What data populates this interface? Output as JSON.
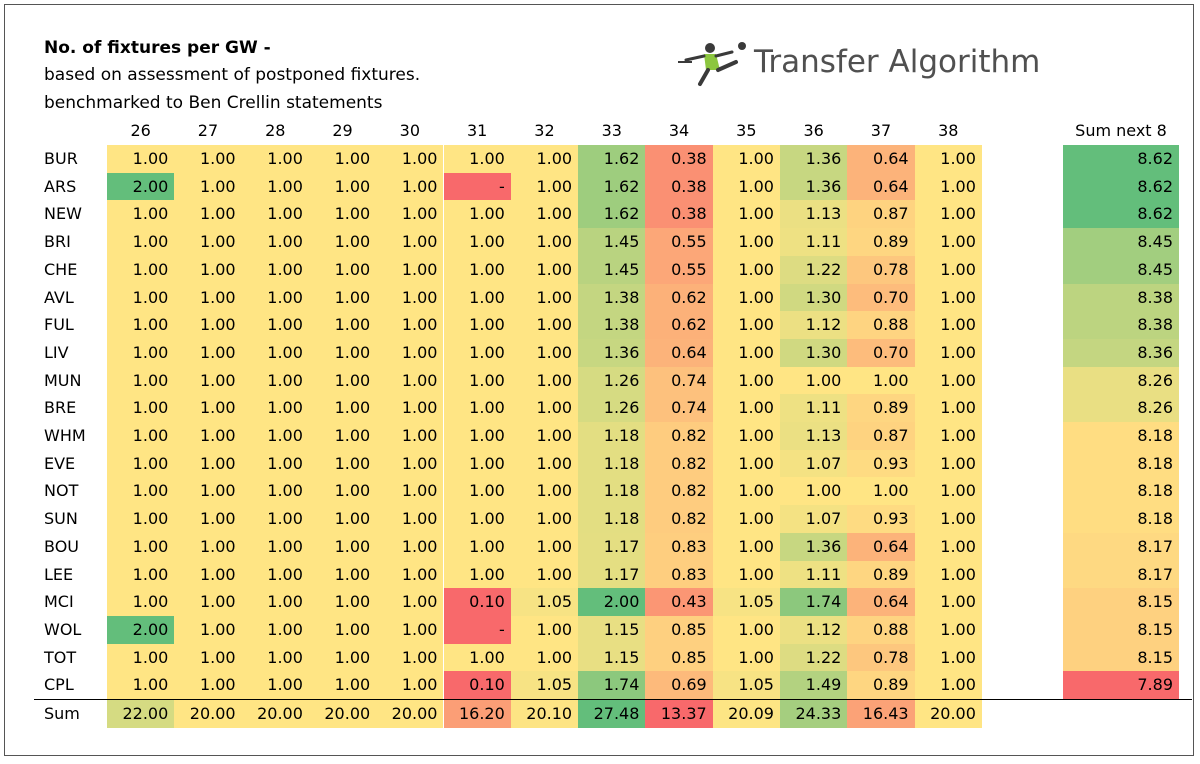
{
  "header": {
    "title": "No. of fixtures per GW -",
    "subtitle_1": "based on assessment of postponed fixtures.",
    "subtitle_2": "benchmarked to Ben Crellin statements"
  },
  "brand": {
    "name": "Transfer Algorithm",
    "logo_icon": "footballer-kick-icon"
  },
  "colors": {
    "green": "#63be7b",
    "yellow": "#ffe584",
    "red": "#f8696b",
    "orange": "#fcb47a"
  },
  "chart_data": {
    "type": "table",
    "title": "No. of fixtures per GW -",
    "gameweeks": [
      "26",
      "27",
      "28",
      "29",
      "30",
      "31",
      "32",
      "33",
      "34",
      "35",
      "36",
      "37",
      "38"
    ],
    "sum_header": "Sum next 8",
    "rows": [
      {
        "team": "BUR",
        "values": [
          "1.00",
          "1.00",
          "1.00",
          "1.00",
          "1.00",
          "1.00",
          "1.00",
          "1.62",
          "0.38",
          "1.00",
          "1.36",
          "0.64",
          "1.00"
        ],
        "sum_next_8": "8.62"
      },
      {
        "team": "ARS",
        "values": [
          "2.00",
          "1.00",
          "1.00",
          "1.00",
          "1.00",
          "-",
          "1.00",
          "1.62",
          "0.38",
          "1.00",
          "1.36",
          "0.64",
          "1.00"
        ],
        "sum_next_8": "8.62"
      },
      {
        "team": "NEW",
        "values": [
          "1.00",
          "1.00",
          "1.00",
          "1.00",
          "1.00",
          "1.00",
          "1.00",
          "1.62",
          "0.38",
          "1.00",
          "1.13",
          "0.87",
          "1.00"
        ],
        "sum_next_8": "8.62"
      },
      {
        "team": "BRI",
        "values": [
          "1.00",
          "1.00",
          "1.00",
          "1.00",
          "1.00",
          "1.00",
          "1.00",
          "1.45",
          "0.55",
          "1.00",
          "1.11",
          "0.89",
          "1.00"
        ],
        "sum_next_8": "8.45"
      },
      {
        "team": "CHE",
        "values": [
          "1.00",
          "1.00",
          "1.00",
          "1.00",
          "1.00",
          "1.00",
          "1.00",
          "1.45",
          "0.55",
          "1.00",
          "1.22",
          "0.78",
          "1.00"
        ],
        "sum_next_8": "8.45"
      },
      {
        "team": "AVL",
        "values": [
          "1.00",
          "1.00",
          "1.00",
          "1.00",
          "1.00",
          "1.00",
          "1.00",
          "1.38",
          "0.62",
          "1.00",
          "1.30",
          "0.70",
          "1.00"
        ],
        "sum_next_8": "8.38"
      },
      {
        "team": "FUL",
        "values": [
          "1.00",
          "1.00",
          "1.00",
          "1.00",
          "1.00",
          "1.00",
          "1.00",
          "1.38",
          "0.62",
          "1.00",
          "1.12",
          "0.88",
          "1.00"
        ],
        "sum_next_8": "8.38"
      },
      {
        "team": "LIV",
        "values": [
          "1.00",
          "1.00",
          "1.00",
          "1.00",
          "1.00",
          "1.00",
          "1.00",
          "1.36",
          "0.64",
          "1.00",
          "1.30",
          "0.70",
          "1.00"
        ],
        "sum_next_8": "8.36"
      },
      {
        "team": "MUN",
        "values": [
          "1.00",
          "1.00",
          "1.00",
          "1.00",
          "1.00",
          "1.00",
          "1.00",
          "1.26",
          "0.74",
          "1.00",
          "1.00",
          "1.00",
          "1.00"
        ],
        "sum_next_8": "8.26"
      },
      {
        "team": "BRE",
        "values": [
          "1.00",
          "1.00",
          "1.00",
          "1.00",
          "1.00",
          "1.00",
          "1.00",
          "1.26",
          "0.74",
          "1.00",
          "1.11",
          "0.89",
          "1.00"
        ],
        "sum_next_8": "8.26"
      },
      {
        "team": "WHM",
        "values": [
          "1.00",
          "1.00",
          "1.00",
          "1.00",
          "1.00",
          "1.00",
          "1.00",
          "1.18",
          "0.82",
          "1.00",
          "1.13",
          "0.87",
          "1.00"
        ],
        "sum_next_8": "8.18"
      },
      {
        "team": "EVE",
        "values": [
          "1.00",
          "1.00",
          "1.00",
          "1.00",
          "1.00",
          "1.00",
          "1.00",
          "1.18",
          "0.82",
          "1.00",
          "1.07",
          "0.93",
          "1.00"
        ],
        "sum_next_8": "8.18"
      },
      {
        "team": "NOT",
        "values": [
          "1.00",
          "1.00",
          "1.00",
          "1.00",
          "1.00",
          "1.00",
          "1.00",
          "1.18",
          "0.82",
          "1.00",
          "1.00",
          "1.00",
          "1.00"
        ],
        "sum_next_8": "8.18"
      },
      {
        "team": "SUN",
        "values": [
          "1.00",
          "1.00",
          "1.00",
          "1.00",
          "1.00",
          "1.00",
          "1.00",
          "1.18",
          "0.82",
          "1.00",
          "1.07",
          "0.93",
          "1.00"
        ],
        "sum_next_8": "8.18"
      },
      {
        "team": "BOU",
        "values": [
          "1.00",
          "1.00",
          "1.00",
          "1.00",
          "1.00",
          "1.00",
          "1.00",
          "1.17",
          "0.83",
          "1.00",
          "1.36",
          "0.64",
          "1.00"
        ],
        "sum_next_8": "8.17"
      },
      {
        "team": "LEE",
        "values": [
          "1.00",
          "1.00",
          "1.00",
          "1.00",
          "1.00",
          "1.00",
          "1.00",
          "1.17",
          "0.83",
          "1.00",
          "1.11",
          "0.89",
          "1.00"
        ],
        "sum_next_8": "8.17"
      },
      {
        "team": "MCI",
        "values": [
          "1.00",
          "1.00",
          "1.00",
          "1.00",
          "1.00",
          "0.10",
          "1.05",
          "2.00",
          "0.43",
          "1.05",
          "1.74",
          "0.64",
          "1.00"
        ],
        "sum_next_8": "8.15"
      },
      {
        "team": "WOL",
        "values": [
          "2.00",
          "1.00",
          "1.00",
          "1.00",
          "1.00",
          "-",
          "1.00",
          "1.15",
          "0.85",
          "1.00",
          "1.12",
          "0.88",
          "1.00"
        ],
        "sum_next_8": "8.15"
      },
      {
        "team": "TOT",
        "values": [
          "1.00",
          "1.00",
          "1.00",
          "1.00",
          "1.00",
          "1.00",
          "1.00",
          "1.15",
          "0.85",
          "1.00",
          "1.22",
          "0.78",
          "1.00"
        ],
        "sum_next_8": "8.15"
      },
      {
        "team": "CPL",
        "values": [
          "1.00",
          "1.00",
          "1.00",
          "1.00",
          "1.00",
          "0.10",
          "1.05",
          "1.74",
          "0.69",
          "1.05",
          "1.49",
          "0.89",
          "1.00"
        ],
        "sum_next_8": "7.89"
      }
    ],
    "sum_row": {
      "label": "Sum",
      "values": [
        "22.00",
        "20.00",
        "20.00",
        "20.00",
        "20.00",
        "16.20",
        "20.10",
        "27.48",
        "13.37",
        "20.09",
        "24.33",
        "16.43",
        "20.00"
      ]
    }
  }
}
